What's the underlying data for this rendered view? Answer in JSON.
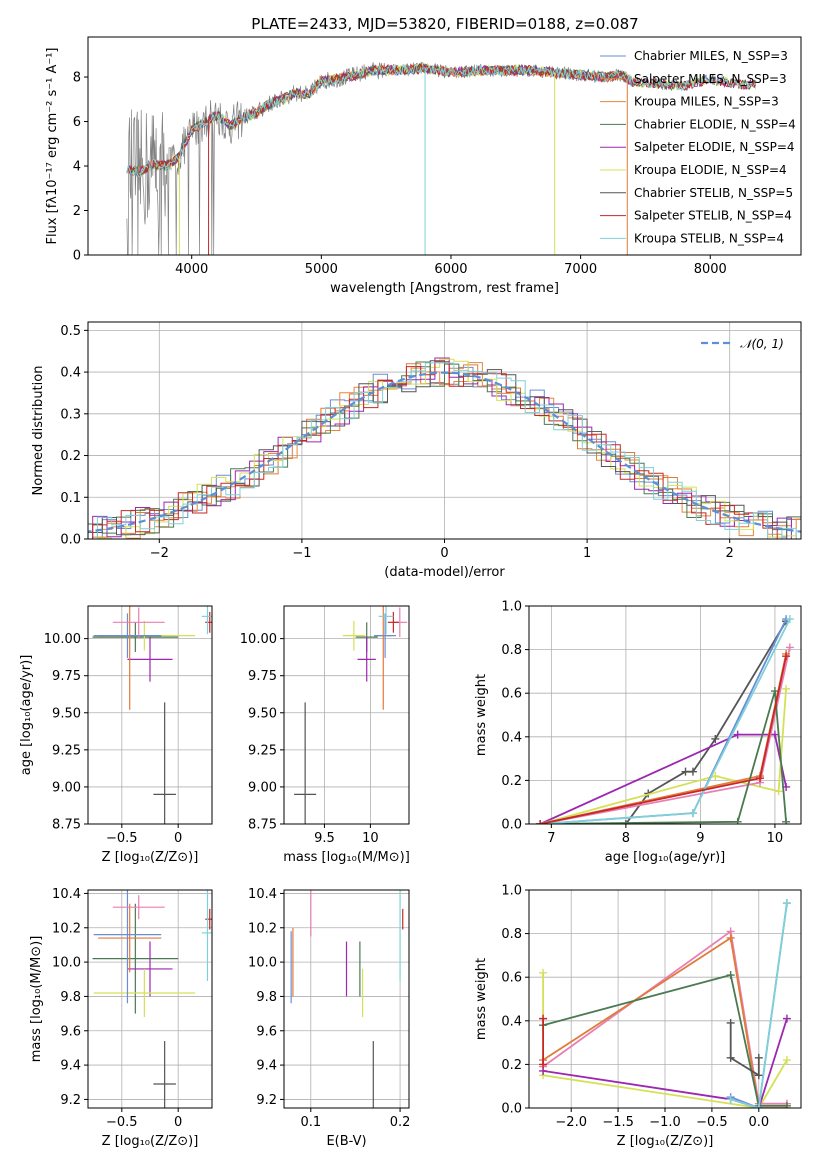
{
  "chart_data": [
    {
      "type": "line",
      "id": "spectrum",
      "title": "PLATE=2433, MJD=53820, FIBERID=0188, z=0.087",
      "xlabel": "wavelength [Angstrom, rest frame]",
      "ylabel": "Flux [fλ10⁻¹⁷ erg cm⁻² s⁻¹ A⁻¹]",
      "xlim": [
        3200,
        8700
      ],
      "ylim": [
        0,
        9.8
      ],
      "xticks": [
        4000,
        5000,
        6000,
        7000,
        8000
      ],
      "yticks": [
        0,
        2,
        4,
        6,
        8
      ],
      "grid": false,
      "legend_position": "right",
      "series": [
        {
          "name": "Chabrier MILES, N_SSP=3",
          "color": "#6a8ed6"
        },
        {
          "name": "Salpeter MILES, N_SSP=3",
          "color": "#e07b39"
        },
        {
          "name": "Kroupa MILES, N_SSP=3",
          "color": "#e8873a"
        },
        {
          "name": "Chabrier ELODIE, N_SSP=4",
          "color": "#4a7a52"
        },
        {
          "name": "Salpeter ELODIE, N_SSP=4",
          "color": "#9c27b0"
        },
        {
          "name": "Kroupa ELODIE, N_SSP=4",
          "color": "#d4e157"
        },
        {
          "name": "Chabrier STELIB, N_SSP=5",
          "color": "#555555"
        },
        {
          "name": "Salpeter STELIB, N_SSP=4",
          "color": "#c62828"
        },
        {
          "name": "Kroupa STELIB, N_SSP=4",
          "color": "#7fd0d8"
        }
      ],
      "data_color": "#808080",
      "continuum": {
        "x": [
          3500,
          3600,
          3700,
          3800,
          3900,
          4000,
          4100,
          4200,
          4300,
          4400,
          4500,
          4600,
          4700,
          4800,
          4900,
          5000,
          5200,
          5400,
          5600,
          5800,
          6000,
          6200,
          6400,
          6600,
          6800,
          7000,
          7200,
          7300,
          7400,
          7600,
          7800,
          8000,
          8200,
          8400
        ],
        "y": [
          3.9,
          3.7,
          4.1,
          4.0,
          4.4,
          5.6,
          6.0,
          6.3,
          5.8,
          6.2,
          6.4,
          6.8,
          7.0,
          7.3,
          7.2,
          7.8,
          8.0,
          8.3,
          8.3,
          8.4,
          8.2,
          8.3,
          8.3,
          8.3,
          8.2,
          8.1,
          8.0,
          8.1,
          7.8,
          7.7,
          7.6,
          7.9,
          7.7,
          7.6
        ]
      }
    },
    {
      "type": "step",
      "id": "residuals",
      "xlabel": "(data-model)/error",
      "ylabel": "Normed distribution",
      "xlim": [
        -2.5,
        2.5
      ],
      "ylim": [
        0,
        0.52
      ],
      "xticks": [
        -2,
        -1,
        0,
        1,
        2
      ],
      "yticks": [
        0.0,
        0.1,
        0.2,
        0.3,
        0.4,
        0.5
      ],
      "grid": true,
      "legend": "𝒩(0, 1)",
      "legend_position": "top-right",
      "gaussian": {
        "mean": 0,
        "sigma": 1,
        "color": "#5b8fd8"
      }
    },
    {
      "type": "scatter",
      "id": "age-vs-Z",
      "xlabel": "Z [log₁₀(Z/Z⊙)]",
      "ylabel": "age  [log₁₀(age/yr)]",
      "xlim": [
        -0.8,
        0.3
      ],
      "ylim": [
        8.75,
        10.22
      ],
      "xticks": [
        -0.5,
        0.0
      ],
      "yticks": [
        8.75,
        9.0,
        9.25,
        9.5,
        9.75,
        10.0
      ],
      "points": [
        {
          "x": -0.12,
          "y": 8.95,
          "xerr": 0.1,
          "yerr": 0.62,
          "color": "#555555"
        },
        {
          "x": -0.38,
          "y": 10.01,
          "xerr": 0.38,
          "yerr": 0.1,
          "color": "#4a7a52"
        },
        {
          "x": -0.25,
          "y": 9.86,
          "xerr": 0.2,
          "yerr": 0.15,
          "color": "#9c27b0"
        },
        {
          "x": -0.43,
          "y": 10.02,
          "xerr": 0.28,
          "yerr": 0.5,
          "color": "#e07b39"
        },
        {
          "x": -0.3,
          "y": 10.02,
          "xerr": 0.45,
          "yerr": 0.1,
          "color": "#d4e157"
        },
        {
          "x": -0.45,
          "y": 10.02,
          "xerr": 0.3,
          "yerr": 0.15,
          "color": "#6a8ed6"
        },
        {
          "x": -0.35,
          "y": 10.11,
          "xerr": 0.23,
          "yerr": 0.1,
          "color": "#e87fb3"
        },
        {
          "x": 0.28,
          "y": 10.11,
          "xerr": 0.04,
          "yerr": 0.07,
          "color": "#c62828"
        },
        {
          "x": 0.26,
          "y": 10.15,
          "xerr": 0.05,
          "yerr": 0.12,
          "color": "#7fd0d8"
        }
      ]
    },
    {
      "type": "scatter",
      "id": "age-vs-mass",
      "xlabel": "mass [log₁₀(M/M⊙)]",
      "ylabel": "",
      "xlim": [
        9.06,
        10.42
      ],
      "ylim": [
        8.75,
        10.22
      ],
      "xticks": [
        9.5,
        10.0
      ],
      "yticks": [
        8.75,
        9.0,
        9.25,
        9.5,
        9.75,
        10.0
      ],
      "points": [
        {
          "x": 9.29,
          "y": 8.95,
          "xerr": 0.12,
          "yerr": 0.62,
          "color": "#555555"
        },
        {
          "x": 9.96,
          "y": 10.01,
          "xerr": 0.12,
          "yerr": 0.1,
          "color": "#4a7a52"
        },
        {
          "x": 9.96,
          "y": 9.86,
          "xerr": 0.1,
          "yerr": 0.15,
          "color": "#9c27b0"
        },
        {
          "x": 10.14,
          "y": 10.02,
          "xerr": 0.1,
          "yerr": 0.5,
          "color": "#e07b39"
        },
        {
          "x": 9.82,
          "y": 10.02,
          "xerr": 0.12,
          "yerr": 0.1,
          "color": "#d4e157"
        },
        {
          "x": 10.16,
          "y": 10.02,
          "xerr": 0.12,
          "yerr": 0.15,
          "color": "#6a8ed6"
        },
        {
          "x": 10.32,
          "y": 10.11,
          "xerr": 0.08,
          "yerr": 0.1,
          "color": "#e87fb3"
        },
        {
          "x": 10.25,
          "y": 10.11,
          "xerr": 0.06,
          "yerr": 0.07,
          "color": "#c62828"
        },
        {
          "x": 10.17,
          "y": 10.15,
          "xerr": 0.08,
          "yerr": 0.12,
          "color": "#7fd0d8"
        }
      ]
    },
    {
      "type": "line",
      "id": "weight-vs-age",
      "xlabel": "age  [log₁₀(age/yr)]",
      "ylabel": "mass weight",
      "xlim": [
        6.7,
        10.35
      ],
      "ylim": [
        0,
        1.0
      ],
      "xticks": [
        7,
        8,
        9,
        10
      ],
      "yticks": [
        0.0,
        0.2,
        0.4,
        0.6,
        0.8,
        1.0
      ],
      "grid": true,
      "series": [
        {
          "color": "#555555",
          "x": [
            6.85,
            8.0,
            8.3,
            8.8,
            8.9,
            9.2,
            10.15
          ],
          "y": [
            0.0,
            0.0,
            0.14,
            0.24,
            0.24,
            0.39,
            0.93
          ]
        },
        {
          "color": "#9c27b0",
          "x": [
            6.85,
            9.5,
            10.0,
            10.15
          ],
          "y": [
            0.0,
            0.41,
            0.41,
            0.17
          ]
        },
        {
          "color": "#d4e157",
          "x": [
            6.85,
            9.2,
            10.05,
            10.15
          ],
          "y": [
            0.0,
            0.22,
            0.15,
            0.62
          ]
        },
        {
          "color": "#e87fb3",
          "x": [
            6.85,
            9.8,
            10.2
          ],
          "y": [
            0.0,
            0.19,
            0.81
          ]
        },
        {
          "color": "#e07b39",
          "x": [
            6.85,
            9.8,
            10.15
          ],
          "y": [
            0.0,
            0.22,
            0.78
          ]
        },
        {
          "color": "#4a7a52",
          "x": [
            6.85,
            9.5,
            10.0,
            10.15
          ],
          "y": [
            0.0,
            0.01,
            0.61,
            0.01
          ]
        },
        {
          "color": "#6a8ed6",
          "x": [
            6.85,
            8.9,
            10.15
          ],
          "y": [
            0.0,
            0.05,
            0.94
          ]
        },
        {
          "color": "#7fd0d8",
          "x": [
            6.85,
            8.9,
            10.2
          ],
          "y": [
            0.0,
            0.05,
            0.94
          ]
        },
        {
          "color": "#c62828",
          "x": [
            6.85,
            9.8,
            10.15
          ],
          "y": [
            0.0,
            0.21,
            0.77
          ]
        }
      ]
    },
    {
      "type": "scatter",
      "id": "mass-vs-Z",
      "xlabel": "Z [log₁₀(Z/Z⊙)]",
      "ylabel": "mass [log₁₀(M/M⊙)]",
      "xlim": [
        -0.8,
        0.3
      ],
      "ylim": [
        9.15,
        10.42
      ],
      "xticks": [
        -0.5,
        0.0
      ],
      "yticks": [
        9.2,
        9.4,
        9.6,
        9.8,
        10.0,
        10.2,
        10.4
      ],
      "points": [
        {
          "x": -0.12,
          "y": 9.29,
          "xerr": 0.1,
          "yerr": 0.25,
          "color": "#555555"
        },
        {
          "x": -0.38,
          "y": 10.02,
          "xerr": 0.38,
          "yerr": 0.32,
          "color": "#4a7a52"
        },
        {
          "x": -0.25,
          "y": 9.96,
          "xerr": 0.2,
          "yerr": 0.16,
          "color": "#9c27b0"
        },
        {
          "x": -0.43,
          "y": 10.14,
          "xerr": 0.28,
          "yerr": 0.2,
          "color": "#e07b39"
        },
        {
          "x": -0.3,
          "y": 9.82,
          "xerr": 0.45,
          "yerr": 0.14,
          "color": "#d4e157"
        },
        {
          "x": -0.45,
          "y": 10.16,
          "xerr": 0.3,
          "yerr": 0.4,
          "color": "#6a8ed6"
        },
        {
          "x": -0.35,
          "y": 10.32,
          "xerr": 0.23,
          "yerr": 0.07,
          "color": "#e87fb3"
        },
        {
          "x": 0.28,
          "y": 10.25,
          "xerr": 0.04,
          "yerr": 0.06,
          "color": "#c62828"
        },
        {
          "x": 0.26,
          "y": 10.17,
          "xerr": 0.05,
          "yerr": 0.28,
          "color": "#7fd0d8"
        }
      ]
    },
    {
      "type": "scatter",
      "id": "mass-vs-ebv",
      "xlabel": "E(B-V)",
      "ylabel": "",
      "xlim": [
        0.07,
        0.21
      ],
      "ylim": [
        9.15,
        10.42
      ],
      "xticks": [
        0.1,
        0.2
      ],
      "yticks": [
        9.2,
        9.4,
        9.6,
        9.8,
        10.0,
        10.2,
        10.4
      ],
      "points": [
        {
          "x": 0.17,
          "y": 9.29,
          "yerr": 0.25,
          "color": "#555555"
        },
        {
          "x": 0.155,
          "y": 9.96,
          "yerr": 0.16,
          "color": "#4a7a52"
        },
        {
          "x": 0.14,
          "y": 9.96,
          "yerr": 0.16,
          "color": "#9c27b0"
        },
        {
          "x": 0.08,
          "y": 10.0,
          "yerr": 0.2,
          "color": "#e07b39"
        },
        {
          "x": 0.158,
          "y": 9.82,
          "yerr": 0.14,
          "color": "#d4e157"
        },
        {
          "x": 0.078,
          "y": 9.97,
          "yerr": 0.21,
          "color": "#6a8ed6"
        },
        {
          "x": 0.1,
          "y": 10.32,
          "yerr": 0.17,
          "color": "#e87fb3"
        },
        {
          "x": 0.203,
          "y": 10.25,
          "yerr": 0.06,
          "color": "#c62828"
        },
        {
          "x": 0.2,
          "y": 10.17,
          "yerr": 0.28,
          "color": "#7fd0d8"
        }
      ]
    },
    {
      "type": "line",
      "id": "weight-vs-Z",
      "xlabel": "Z [log₁₀(Z/Z⊙)]",
      "ylabel": "mass weight",
      "xlim": [
        -2.45,
        0.45
      ],
      "ylim": [
        0,
        1.0
      ],
      "xticks": [
        -2.0,
        -1.5,
        -1.0,
        -0.5,
        0.0
      ],
      "yticks": [
        0.0,
        0.2,
        0.4,
        0.6,
        0.8,
        1.0
      ],
      "grid": true,
      "series": [
        {
          "color": "#d4e157",
          "x": [
            -2.3,
            -2.3,
            0.0,
            0.3
          ],
          "y": [
            0.62,
            0.15,
            0.0,
            0.22
          ]
        },
        {
          "color": "#e87fb3",
          "x": [
            -2.3,
            -0.3,
            0.0,
            0.3
          ],
          "y": [
            0.19,
            0.81,
            0.02,
            0.02
          ]
        },
        {
          "color": "#e07b39",
          "x": [
            -2.3,
            -0.3,
            0.0,
            0.3
          ],
          "y": [
            0.22,
            0.78,
            0.0,
            0.0
          ]
        },
        {
          "color": "#4a7a52",
          "x": [
            -2.3,
            -0.3,
            0.0,
            0.3
          ],
          "y": [
            0.38,
            0.61,
            0.01,
            0.01
          ]
        },
        {
          "color": "#9c27b0",
          "x": [
            -2.3,
            -0.3,
            0.0,
            0.3
          ],
          "y": [
            0.17,
            0.04,
            0.0,
            0.41
          ]
        },
        {
          "color": "#555555",
          "x": [
            -0.3,
            -0.3,
            0.0,
            0.0
          ],
          "y": [
            0.39,
            0.23,
            0.15,
            0.23
          ]
        },
        {
          "color": "#6a8ed6",
          "x": [
            -0.3,
            0.0,
            0.3
          ],
          "y": [
            0.05,
            0.0,
            0.94
          ]
        },
        {
          "color": "#7fd0d8",
          "x": [
            -0.3,
            0.0,
            0.3
          ],
          "y": [
            0.04,
            0.0,
            0.94
          ]
        },
        {
          "color": "#c62828",
          "x": [
            -2.3,
            -2.3
          ],
          "y": [
            0.41,
            0.2
          ]
        }
      ]
    }
  ]
}
